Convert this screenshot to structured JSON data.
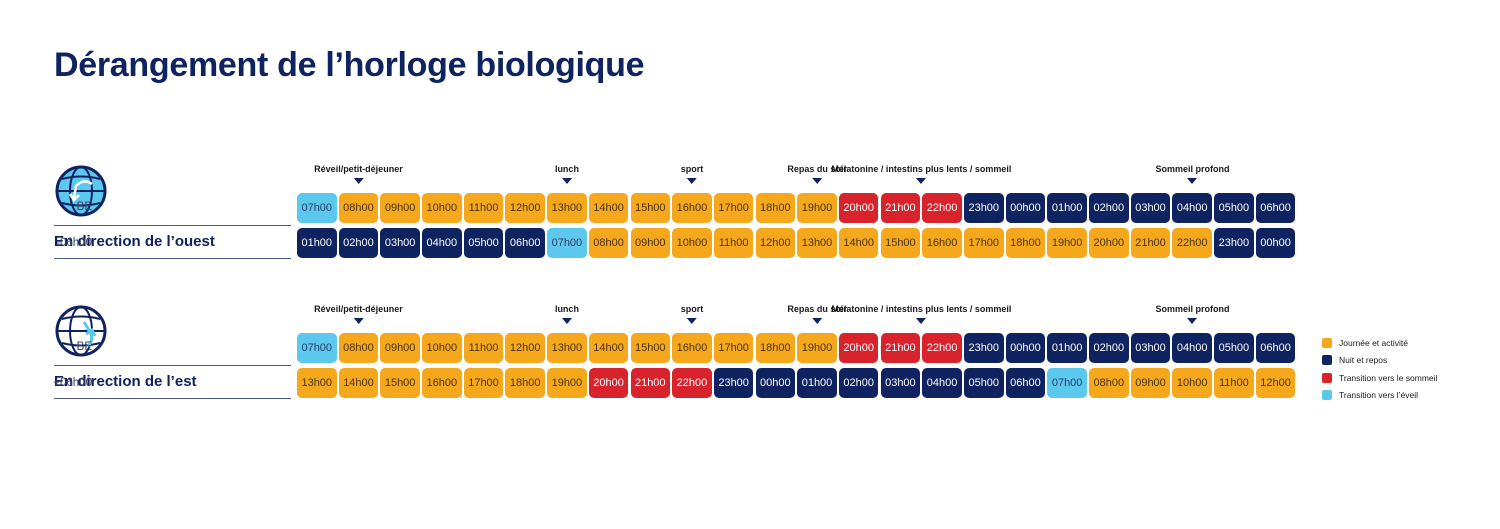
{
  "title": "Dérangement de l’horloge biologique",
  "colors": {
    "day": "#f6a81c",
    "night": "#0f2360",
    "sleep_transition": "#d8222c",
    "wake_transition": "#5cc8ee"
  },
  "legend": [
    {
      "key": "day",
      "label": "Journée et activité"
    },
    {
      "key": "night",
      "label": "Nuit et repos"
    },
    {
      "key": "sleep",
      "label": "Transition vers le sommeil"
    },
    {
      "key": "wake",
      "label": "Transition vers l’éveil"
    }
  ],
  "sections": [
    {
      "id": "west",
      "icon": "globe-west-icon",
      "direction_title": "En direction de l’ouest",
      "markers": [
        {
          "label": "Réveil/petit-déjeuner",
          "column": 1
        },
        {
          "label": "lunch",
          "column": 6
        },
        {
          "label": "sport",
          "column": 9
        },
        {
          "label": "Repas du soir",
          "column": 12
        },
        {
          "label": "Mélatonine / intestins plus lents / sommeil",
          "column": 14.5
        },
        {
          "label": "Sommeil profond",
          "column": 21
        }
      ],
      "rows": [
        {
          "label": "BE",
          "times": [
            "07h00",
            "08h00",
            "09h00",
            "10h00",
            "11h00",
            "12h00",
            "13h00",
            "14h00",
            "15h00",
            "16h00",
            "17h00",
            "18h00",
            "19h00",
            "20h00",
            "21h00",
            "22h00",
            "23h00",
            "00h00",
            "01h00",
            "02h00",
            "03h00",
            "04h00",
            "05h00",
            "06h00"
          ],
          "types": [
            "wake",
            "day",
            "day",
            "day",
            "day",
            "day",
            "day",
            "day",
            "day",
            "day",
            "day",
            "day",
            "day",
            "sleep",
            "sleep",
            "sleep",
            "night",
            "night",
            "night",
            "night",
            "night",
            "night",
            "night",
            "night"
          ]
        },
        {
          "label": "-06h00",
          "times": [
            "01h00",
            "02h00",
            "03h00",
            "04h00",
            "05h00",
            "06h00",
            "07h00",
            "08h00",
            "09h00",
            "10h00",
            "11h00",
            "12h00",
            "13h00",
            "14h00",
            "15h00",
            "16h00",
            "17h00",
            "18h00",
            "19h00",
            "20h00",
            "21h00",
            "22h00",
            "23h00",
            "00h00"
          ],
          "types": [
            "night",
            "night",
            "night",
            "night",
            "night",
            "night",
            "wake",
            "day",
            "day",
            "day",
            "day",
            "day",
            "day",
            "day",
            "day",
            "day",
            "day",
            "day",
            "day",
            "day",
            "day",
            "day",
            "night",
            "night"
          ]
        }
      ]
    },
    {
      "id": "east",
      "icon": "globe-east-icon",
      "direction_title": "En direction de l’est",
      "markers": [
        {
          "label": "Réveil/petit-déjeuner",
          "column": 1
        },
        {
          "label": "lunch",
          "column": 6
        },
        {
          "label": "sport",
          "column": 9
        },
        {
          "label": "Repas du soir",
          "column": 12
        },
        {
          "label": "Mélatonine / intestins plus lents / sommeil",
          "column": 14.5
        },
        {
          "label": "Sommeil profond",
          "column": 21
        }
      ],
      "rows": [
        {
          "label": "BE",
          "times": [
            "07h00",
            "08h00",
            "09h00",
            "10h00",
            "11h00",
            "12h00",
            "13h00",
            "14h00",
            "15h00",
            "16h00",
            "17h00",
            "18h00",
            "19h00",
            "20h00",
            "21h00",
            "22h00",
            "23h00",
            "00h00",
            "01h00",
            "02h00",
            "03h00",
            "04h00",
            "05h00",
            "06h00"
          ],
          "types": [
            "wake",
            "day",
            "day",
            "day",
            "day",
            "day",
            "day",
            "day",
            "day",
            "day",
            "day",
            "day",
            "day",
            "sleep",
            "sleep",
            "sleep",
            "night",
            "night",
            "night",
            "night",
            "night",
            "night",
            "night",
            "night"
          ]
        },
        {
          "label": "+06h00",
          "times": [
            "13h00",
            "14h00",
            "15h00",
            "16h00",
            "17h00",
            "18h00",
            "19h00",
            "20h00",
            "21h00",
            "22h00",
            "23h00",
            "00h00",
            "01h00",
            "02h00",
            "03h00",
            "04h00",
            "05h00",
            "06h00",
            "07h00",
            "08h00",
            "09h00",
            "10h00",
            "11h00",
            "12h00"
          ],
          "types": [
            "day",
            "day",
            "day",
            "day",
            "day",
            "day",
            "day",
            "sleep",
            "sleep",
            "sleep",
            "night",
            "night",
            "night",
            "night",
            "night",
            "night",
            "night",
            "night",
            "wake",
            "day",
            "day",
            "day",
            "day",
            "day"
          ]
        }
      ]
    }
  ]
}
